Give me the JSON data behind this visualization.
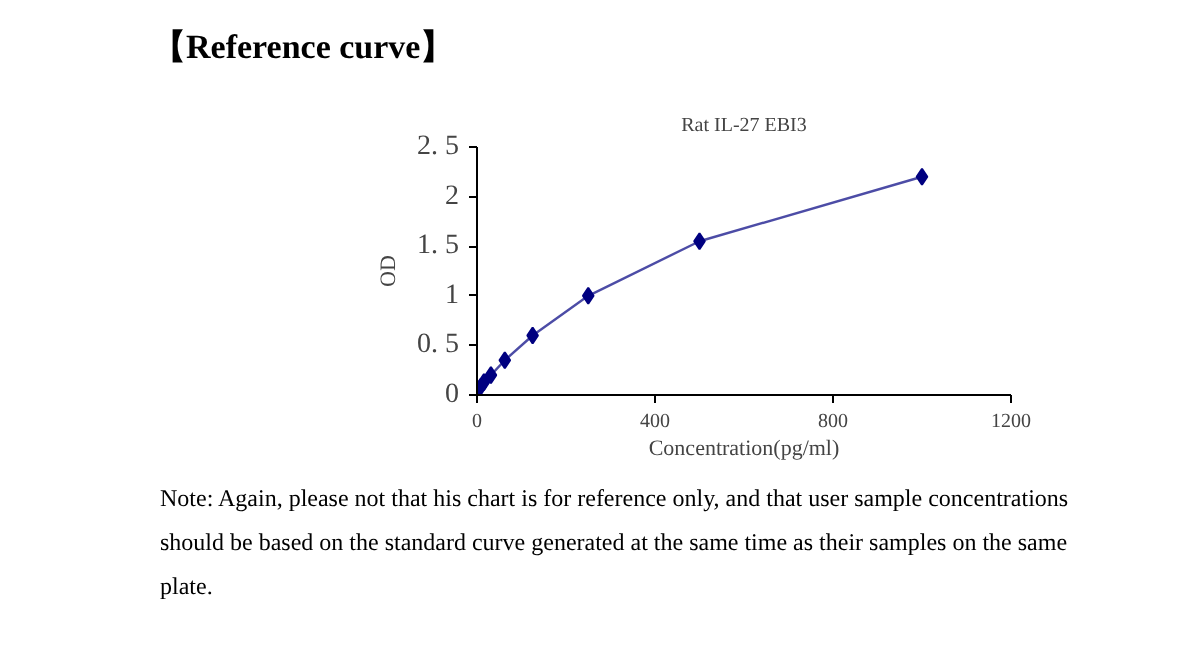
{
  "chart_data": {
    "type": "line",
    "title": "【Reference curve】",
    "subtitle": "Rat IL-27 EBI3",
    "xlabel": "Concentration(pg/ml)",
    "ylabel": "OD",
    "x": [
      0,
      7.8,
      15.6,
      31.25,
      62.5,
      125,
      250,
      500,
      1000
    ],
    "series": [
      {
        "color": "#000080",
        "values": [
          0.04,
          0.08,
          0.13,
          0.2,
          0.35,
          0.6,
          1.0,
          1.55,
          2.2
        ]
      }
    ],
    "xlim": [
      0,
      1200
    ],
    "xticks": [
      0,
      400,
      800,
      1200
    ],
    "ylim": [
      0,
      2.5
    ],
    "yticks": [
      0,
      {
        "value": 0.5,
        "label": "0. 5"
      },
      1,
      {
        "value": 1.5,
        "label": "1. 5"
      },
      2,
      {
        "value": 2.5,
        "label": "2. 5"
      }
    ],
    "marker": "diamond",
    "line_style": "solid",
    "grid": false,
    "annotations": [
      "Note: Again, please not that his chart is for reference only, and that user sample concentrations should be based on the standard curve generated at the same time as their samples on the same plate."
    ]
  }
}
